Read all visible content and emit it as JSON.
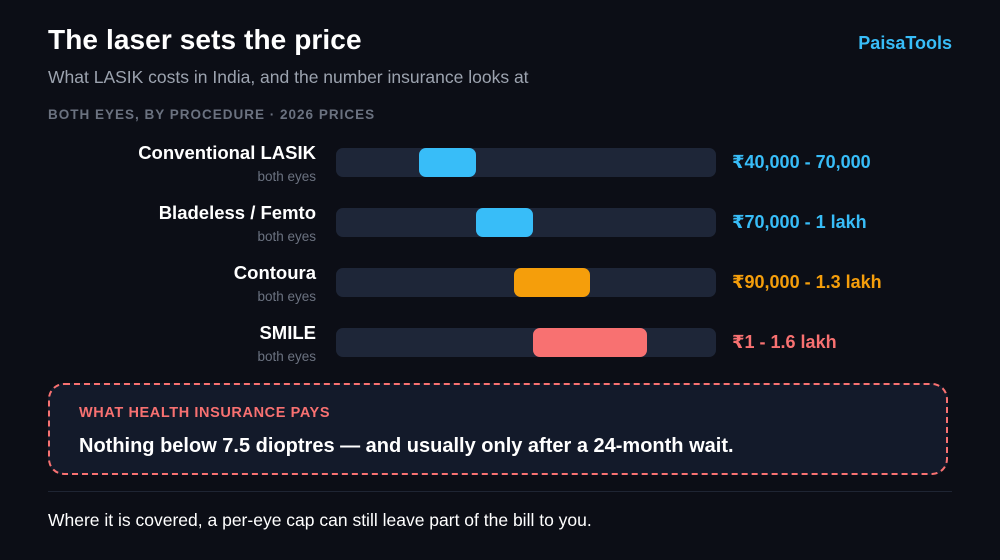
{
  "header": {
    "title": "The laser sets the price",
    "brand": "PaisaTools",
    "subtitle": "What LASIK costs in India, and the number insurance looks at",
    "section_label": "BOTH EYES, BY PROCEDURE · 2026 PRICES"
  },
  "chart_data": {
    "type": "range-bar",
    "unit": "₹",
    "range_axis": [
      0,
      200000
    ],
    "grid": false,
    "rows": [
      {
        "name": "Conventional LASIK",
        "sub": "both eyes",
        "label": "₹40,000 - 70,000",
        "low": 40000,
        "high": 70000,
        "color": "#38bdf8"
      },
      {
        "name": "Bladeless / Femto",
        "sub": "both eyes",
        "label": "₹70,000 - 1 lakh",
        "low": 70000,
        "high": 100000,
        "color": "#38bdf8"
      },
      {
        "name": "Contoura",
        "sub": "both eyes",
        "label": "₹90,000 - 1.3 lakh",
        "low": 90000,
        "high": 130000,
        "color": "#f59e0b"
      },
      {
        "name": "SMILE",
        "sub": "both eyes",
        "label": "₹1 - 1.6 lakh",
        "low": 100000,
        "high": 160000,
        "color": "#f87171"
      }
    ]
  },
  "callout": {
    "label": "WHAT HEALTH INSURANCE PAYS",
    "text": "Nothing below 7.5 dioptres — and usually only after a 24-month wait."
  },
  "footer": {
    "text": "Where it is covered, a per-eye cap can still leave part of the bill to you."
  }
}
